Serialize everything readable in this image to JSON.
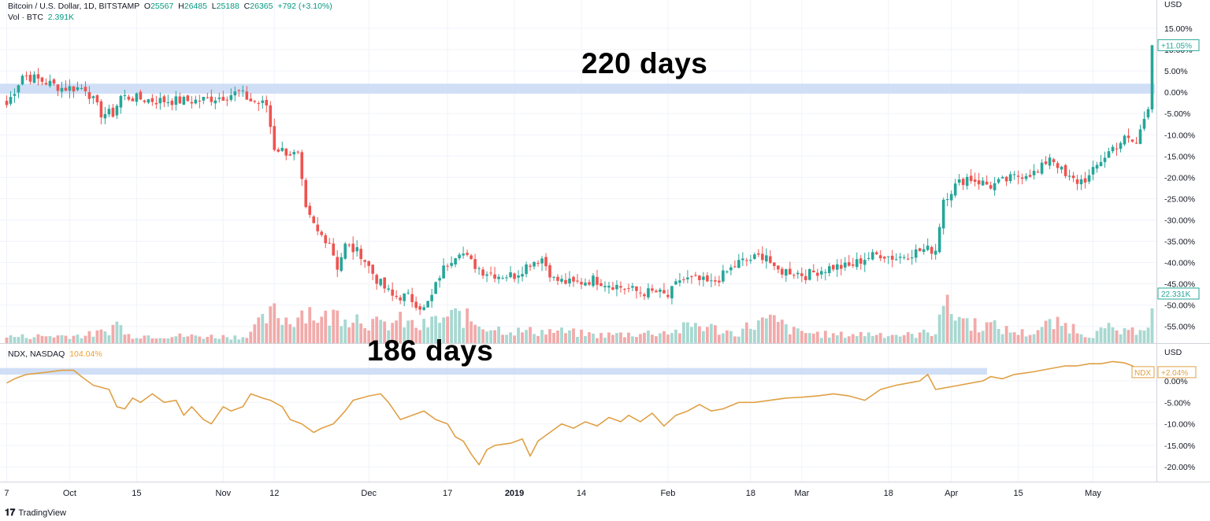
{
  "header": {
    "btc_symbol": "Bitcoin / U.S. Dollar, 1D, BITSTAMP",
    "o_label": "O",
    "o_value": "25567",
    "h_label": "H",
    "h_value": "26485",
    "l_label": "L",
    "l_value": "25188",
    "c_label": "C",
    "c_value": "26365",
    "change": "+792 (+3.10%)",
    "vol_label": "Vol · BTC",
    "vol_value": "2.391K",
    "ndx_symbol": "NDX, NASDAQ",
    "ndx_value": "104.04%",
    "currency": "USD"
  },
  "annotations": {
    "btc_days": "220 days",
    "ndx_days": "186 days"
  },
  "footer": {
    "brand_mark": "𝟏𝟕",
    "brand": "TradingView"
  },
  "colors": {
    "up": "#26a69a",
    "down": "#ef5350",
    "ndx_line": "#e0a045",
    "highlight": "#c8d9f5",
    "vol_up": "#a8d8d1",
    "vol_down": "#f2aaaa"
  },
  "chart_data": [
    {
      "type": "candlestick",
      "title": "Bitcoin / U.S. Dollar, 1D, BITSTAMP",
      "unit": "% change",
      "y_ticks": [
        "15.00%",
        "10.00%",
        "5.00%",
        "0.00%",
        "-5.00%",
        "-10.00%",
        "-15.00%",
        "-20.00%",
        "-25.00%",
        "-30.00%",
        "-35.00%",
        "-40.00%",
        "-45.00%",
        "-50.00%",
        "-55.00%"
      ],
      "ylim": [
        -59,
        16
      ],
      "last_price_label": "+11.05%",
      "last_price": 11.05,
      "last_volume_label": "22.331K",
      "highlight_band": [
        0,
        2
      ],
      "volume_label": "Vol · BTC",
      "grid": true,
      "close_anchors": [
        [
          0,
          -3
        ],
        [
          4,
          4
        ],
        [
          8,
          3
        ],
        [
          14,
          1
        ],
        [
          20,
          1
        ],
        [
          24,
          -5
        ],
        [
          27,
          -5
        ],
        [
          29,
          -1
        ],
        [
          38,
          -2
        ],
        [
          44,
          -2
        ],
        [
          48,
          -2
        ],
        [
          55,
          -1
        ],
        [
          59,
          0
        ],
        [
          62,
          -2
        ],
        [
          66,
          -3
        ],
        [
          68,
          -13
        ],
        [
          71,
          -14
        ],
        [
          74,
          -15
        ],
        [
          76,
          -28
        ],
        [
          79,
          -33
        ],
        [
          82,
          -35
        ],
        [
          84,
          -41
        ],
        [
          86,
          -36
        ],
        [
          90,
          -38
        ],
        [
          94,
          -44
        ],
        [
          98,
          -48
        ],
        [
          102,
          -48
        ],
        [
          106,
          -51
        ],
        [
          108,
          -48
        ],
        [
          110,
          -43
        ],
        [
          112,
          -40
        ],
        [
          115,
          -37
        ],
        [
          118,
          -40
        ],
        [
          121,
          -42
        ],
        [
          125,
          -43
        ],
        [
          129,
          -43
        ],
        [
          133,
          -40
        ],
        [
          136,
          -39
        ],
        [
          139,
          -44
        ],
        [
          144,
          -45
        ],
        [
          149,
          -44
        ],
        [
          153,
          -45
        ],
        [
          157,
          -46
        ],
        [
          161,
          -47
        ],
        [
          165,
          -47
        ],
        [
          168,
          -48
        ],
        [
          171,
          -44
        ],
        [
          175,
          -44
        ],
        [
          179,
          -45
        ],
        [
          182,
          -43
        ],
        [
          186,
          -40
        ],
        [
          190,
          -39
        ],
        [
          193,
          -38
        ],
        [
          195,
          -42
        ],
        [
          199,
          -42
        ],
        [
          203,
          -43
        ],
        [
          206,
          -42
        ],
        [
          210,
          -41
        ],
        [
          214,
          -41
        ],
        [
          218,
          -39
        ],
        [
          222,
          -38
        ],
        [
          226,
          -39
        ],
        [
          229,
          -38
        ],
        [
          233,
          -37
        ],
        [
          236,
          -37
        ],
        [
          238,
          -25
        ],
        [
          241,
          -22
        ],
        [
          244,
          -20
        ],
        [
          247,
          -21
        ],
        [
          250,
          -22
        ],
        [
          253,
          -21
        ],
        [
          256,
          -20
        ],
        [
          259,
          -19
        ],
        [
          262,
          -19
        ],
        [
          265,
          -15
        ],
        [
          267,
          -17
        ],
        [
          269,
          -20
        ],
        [
          272,
          -21
        ],
        [
          275,
          -20
        ],
        [
          278,
          -16
        ],
        [
          281,
          -13
        ],
        [
          284,
          -11
        ],
        [
          287,
          -12
        ],
        [
          289,
          -6
        ],
        [
          290,
          -3
        ],
        [
          291,
          11.05
        ]
      ],
      "volume_anchors": [
        [
          0,
          8
        ],
        [
          20,
          10
        ],
        [
          25,
          14
        ],
        [
          29,
          28
        ],
        [
          30,
          10
        ],
        [
          60,
          8
        ],
        [
          68,
          38
        ],
        [
          72,
          28
        ],
        [
          76,
          45
        ],
        [
          80,
          30
        ],
        [
          85,
          38
        ],
        [
          90,
          32
        ],
        [
          95,
          22
        ],
        [
          100,
          28
        ],
        [
          105,
          20
        ],
        [
          110,
          30
        ],
        [
          115,
          35
        ],
        [
          120,
          24
        ],
        [
          125,
          18
        ],
        [
          130,
          15
        ],
        [
          140,
          15
        ],
        [
          150,
          10
        ],
        [
          160,
          12
        ],
        [
          170,
          15
        ],
        [
          175,
          24
        ],
        [
          180,
          18
        ],
        [
          185,
          12
        ],
        [
          190,
          25
        ],
        [
          195,
          28
        ],
        [
          200,
          15
        ],
        [
          210,
          10
        ],
        [
          220,
          12
        ],
        [
          230,
          10
        ],
        [
          236,
          15
        ],
        [
          237,
          50
        ],
        [
          240,
          40
        ],
        [
          245,
          25
        ],
        [
          250,
          22
        ],
        [
          255,
          15
        ],
        [
          260,
          12
        ],
        [
          265,
          24
        ],
        [
          270,
          22
        ],
        [
          275,
          10
        ],
        [
          280,
          18
        ],
        [
          285,
          12
        ],
        [
          290,
          28
        ],
        [
          291,
          36
        ]
      ],
      "x_ticks": [
        {
          "label": "7",
          "pos": 0
        },
        {
          "label": "Oct",
          "pos": 16
        },
        {
          "label": "15",
          "pos": 33
        },
        {
          "label": "Nov",
          "pos": 55
        },
        {
          "label": "12",
          "pos": 68
        },
        {
          "label": "Dec",
          "pos": 92
        },
        {
          "label": "17",
          "pos": 112
        },
        {
          "label": "2019",
          "pos": 129
        },
        {
          "label": "14",
          "pos": 146
        },
        {
          "label": "Feb",
          "pos": 168
        },
        {
          "label": "18",
          "pos": 189
        },
        {
          "label": "Mar",
          "pos": 202
        },
        {
          "label": "18",
          "pos": 224
        },
        {
          "label": "Apr",
          "pos": 240
        },
        {
          "label": "15",
          "pos": 257
        },
        {
          "label": "May",
          "pos": 276
        }
      ]
    },
    {
      "type": "line",
      "title": "NDX, NASDAQ",
      "unit": "% change",
      "y_ticks": [
        "0.00%",
        "-5.00%",
        "-10.00%",
        "-15.00%",
        "-20.00%"
      ],
      "ylim": [
        -22,
        5
      ],
      "last_label": "+2.04%",
      "series_label": "NDX",
      "highlight_band": [
        2,
        3
      ],
      "points": [
        [
          0,
          -0.5
        ],
        [
          2,
          0.5
        ],
        [
          5,
          1.5
        ],
        [
          10,
          2
        ],
        [
          14,
          2.5
        ],
        [
          17,
          2.5
        ],
        [
          19,
          1
        ],
        [
          22,
          -1
        ],
        [
          26,
          -2
        ],
        [
          28,
          -6
        ],
        [
          30,
          -6.5
        ],
        [
          32,
          -4
        ],
        [
          34,
          -5
        ],
        [
          37,
          -3
        ],
        [
          40,
          -5
        ],
        [
          43,
          -4.5
        ],
        [
          45,
          -8
        ],
        [
          47,
          -6
        ],
        [
          50,
          -9
        ],
        [
          52,
          -10
        ],
        [
          55,
          -6
        ],
        [
          57,
          -7
        ],
        [
          60,
          -6
        ],
        [
          62,
          -3
        ],
        [
          65,
          -4
        ],
        [
          67,
          -4.5
        ],
        [
          70,
          -6
        ],
        [
          72,
          -9
        ],
        [
          75,
          -10
        ],
        [
          78,
          -12
        ],
        [
          80,
          -11
        ],
        [
          83,
          -10
        ],
        [
          86,
          -7
        ],
        [
          88,
          -4.5
        ],
        [
          92,
          -3.5
        ],
        [
          95,
          -3
        ],
        [
          97,
          -5
        ],
        [
          100,
          -9
        ],
        [
          103,
          -8
        ],
        [
          106,
          -7
        ],
        [
          109,
          -9
        ],
        [
          112,
          -10
        ],
        [
          114,
          -13
        ],
        [
          116,
          -14
        ],
        [
          118,
          -17
        ],
        [
          120,
          -19.5
        ],
        [
          122,
          -16
        ],
        [
          124,
          -15
        ],
        [
          128,
          -14.5
        ],
        [
          131,
          -13.5
        ],
        [
          133,
          -17.5
        ],
        [
          135,
          -14
        ],
        [
          138,
          -12
        ],
        [
          141,
          -10
        ],
        [
          144,
          -11
        ],
        [
          147,
          -9.5
        ],
        [
          150,
          -10.5
        ],
        [
          153,
          -8.5
        ],
        [
          156,
          -9.5
        ],
        [
          158,
          -8
        ],
        [
          161,
          -9.5
        ],
        [
          164,
          -7.5
        ],
        [
          167,
          -10.5
        ],
        [
          170,
          -8
        ],
        [
          173,
          -7
        ],
        [
          176,
          -5.5
        ],
        [
          179,
          -7
        ],
        [
          182,
          -6.5
        ],
        [
          186,
          -5
        ],
        [
          190,
          -5
        ],
        [
          194,
          -4.5
        ],
        [
          198,
          -4
        ],
        [
          202,
          -3.8
        ],
        [
          206,
          -3.5
        ],
        [
          210,
          -3
        ],
        [
          214,
          -3.5
        ],
        [
          218,
          -4.5
        ],
        [
          222,
          -2
        ],
        [
          226,
          -1
        ],
        [
          229,
          -0.5
        ],
        [
          232,
          0
        ],
        [
          234,
          1.5
        ],
        [
          236,
          -2
        ],
        [
          239,
          -1.5
        ],
        [
          242,
          -1
        ],
        [
          245,
          -0.5
        ],
        [
          248,
          0
        ],
        [
          250,
          1
        ],
        [
          253,
          0.5
        ],
        [
          256,
          1.5
        ],
        [
          260,
          2
        ],
        [
          263,
          2.5
        ],
        [
          266,
          3
        ],
        [
          269,
          3.5
        ],
        [
          272,
          3.5
        ],
        [
          275,
          4
        ],
        [
          278,
          4
        ],
        [
          281,
          4.5
        ],
        [
          284,
          4.2
        ],
        [
          286,
          3.5
        ],
        [
          288,
          2
        ],
        [
          291,
          2.04
        ]
      ]
    }
  ]
}
